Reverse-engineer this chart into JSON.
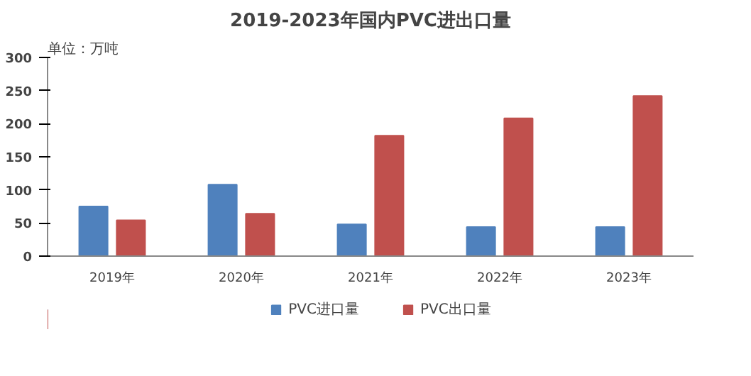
{
  "chart_data": {
    "type": "bar",
    "title": "2019-2023年国内PVC进出口量",
    "annotations": [
      "单位：万吨"
    ],
    "categories": [
      "2019年",
      "2020年",
      "2021年",
      "2022年",
      "2023年"
    ],
    "series": [
      {
        "name": "PVC进口量",
        "color": "#4f81bd",
        "values": [
          75,
          108,
          48,
          44,
          44
        ]
      },
      {
        "name": "PVC出口量",
        "color": "#c0504d",
        "values": [
          54,
          64,
          182,
          208,
          242
        ]
      }
    ],
    "ylim": [
      0,
      300
    ],
    "yticks": [
      0,
      50,
      100,
      150,
      200,
      250,
      300
    ],
    "grid": false,
    "legend": "bottom"
  }
}
